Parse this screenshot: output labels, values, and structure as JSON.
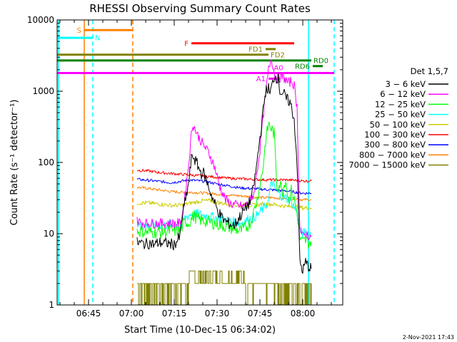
{
  "chart_data": {
    "type": "line",
    "title": "RHESSI Observing Summary Count Rates",
    "xlabel": "Start Time (10-Dec-15 06:34:02)",
    "ylabel": "Count Rate (s⁻¹ detector⁻¹)",
    "x_unit": "minutes UT",
    "xlim": [
      394,
      494
    ],
    "ylim": [
      1,
      10000
    ],
    "yscale": "log",
    "x_ticks": [
      {
        "value": 405,
        "label": "06:45"
      },
      {
        "value": 420,
        "label": "07:00"
      },
      {
        "value": 435,
        "label": "07:15"
      },
      {
        "value": 450,
        "label": "07:30"
      },
      {
        "value": 465,
        "label": "07:45"
      },
      {
        "value": 480,
        "label": "08:00"
      }
    ],
    "y_ticks": [
      {
        "value": 1,
        "label": "1"
      },
      {
        "value": 10,
        "label": "10"
      },
      {
        "value": 100,
        "label": "100"
      },
      {
        "value": 1000,
        "label": "1000"
      },
      {
        "value": 10000,
        "label": "10000"
      }
    ],
    "legend": {
      "title": "Det 1,5,7",
      "placement": "right",
      "entries": [
        {
          "label": "3 − 6 keV",
          "color": "#000000"
        },
        {
          "label": "6 − 12 keV",
          "color": "#ff00ff"
        },
        {
          "label": "12 − 25 keV",
          "color": "#00ff00"
        },
        {
          "label": "25 − 50 keV",
          "color": "#00ffff"
        },
        {
          "label": "50 − 100 keV",
          "color": "#cccc00"
        },
        {
          "label": "100 − 300 keV",
          "color": "#ff0000"
        },
        {
          "label": "300 − 800 keV",
          "color": "#0000ff"
        },
        {
          "label": "800 − 7000 keV",
          "color": "#ff8000"
        },
        {
          "label": "7000 − 15000 keV",
          "color": "#808000"
        }
      ]
    },
    "series": [
      {
        "name": "3 − 6 keV",
        "color": "#000000",
        "x": [
          422,
          425,
          427,
          428,
          429,
          430,
          433,
          435,
          437,
          438,
          439,
          440,
          441,
          441.5,
          443,
          444.5,
          445,
          446,
          448,
          450,
          452,
          454,
          456,
          459,
          462,
          463.5,
          465,
          466.5,
          467,
          468,
          468.5,
          469,
          470,
          471.5,
          472,
          473.5,
          474,
          475.5,
          476,
          477,
          478,
          479,
          480,
          481,
          482,
          483
        ],
        "y": [
          7.5,
          7.2,
          7.4,
          7,
          7.3,
          7.5,
          7.3,
          7,
          9,
          20,
          30,
          50,
          110,
          125,
          95,
          70,
          75,
          60,
          35,
          22,
          16,
          14,
          13,
          20,
          30,
          70,
          220,
          700,
          1000,
          1100,
          900,
          1100,
          1600,
          1500,
          1000,
          900,
          800,
          700,
          600,
          400,
          100,
          4,
          3,
          4,
          3.5,
          3.2
        ]
      },
      {
        "name": "6 − 12 keV",
        "color": "#ff00ff",
        "x": [
          422,
          425,
          428,
          431,
          434,
          437,
          438,
          439,
          440,
          441,
          441.5,
          443,
          445,
          447,
          449,
          451,
          453,
          455,
          457,
          459,
          461,
          463,
          465,
          466,
          467,
          468,
          469,
          470,
          471,
          473,
          475,
          476,
          477,
          478,
          479,
          480,
          481,
          482,
          483
        ],
        "y": [
          15,
          14,
          14,
          14,
          14,
          14,
          20,
          40,
          90,
          250,
          350,
          250,
          180,
          140,
          90,
          45,
          30,
          26,
          25,
          24,
          26,
          38,
          150,
          400,
          900,
          2000,
          3000,
          1800,
          1500,
          1600,
          1300,
          1400,
          1200,
          600,
          12,
          9,
          10,
          9.5,
          9
        ]
      },
      {
        "name": "12 − 25 keV",
        "color": "#00ff00",
        "x": [
          422,
          426,
          430,
          434,
          437,
          438,
          439,
          440,
          441,
          442,
          443,
          446,
          449,
          452,
          455,
          458,
          460,
          462,
          464,
          466,
          467,
          468,
          469,
          470,
          471,
          472,
          473,
          474,
          475,
          476,
          477,
          478,
          479,
          480,
          481,
          482,
          483
        ],
        "y": [
          11,
          10.5,
          10.5,
          11,
          11,
          13,
          15,
          14,
          16,
          18,
          16,
          15,
          14,
          13,
          12,
          11,
          12,
          15,
          30,
          80,
          200,
          350,
          300,
          250,
          45,
          50,
          40,
          60,
          30,
          40,
          30,
          20,
          8.5,
          7.5,
          8,
          7.5,
          7.8
        ]
      },
      {
        "name": "25 − 50 keV",
        "color": "#00ffff",
        "x": [
          422,
          426,
          430,
          434,
          437,
          438,
          439,
          441,
          443,
          446,
          449,
          452,
          455,
          458,
          461,
          464,
          466,
          468,
          469,
          470,
          472,
          474,
          476,
          478,
          479,
          480,
          481,
          482,
          483
        ],
        "y": [
          13.5,
          13,
          13,
          13.5,
          13,
          15,
          17,
          19,
          19,
          18,
          17,
          16,
          15,
          14,
          16,
          18,
          22,
          28,
          55,
          45,
          35,
          32,
          28,
          20,
          11,
          10,
          10.5,
          10,
          10.5
        ]
      },
      {
        "name": "50 − 100 keV",
        "color": "#cccc00",
        "x": [
          422,
          426,
          430,
          434,
          437,
          439,
          441,
          443,
          445,
          448,
          451,
          454,
          457,
          460,
          463,
          466,
          469,
          472,
          475,
          478,
          480,
          483
        ],
        "y": [
          27,
          27,
          26,
          25,
          25,
          26,
          27,
          28,
          29,
          29,
          27,
          26,
          25,
          25,
          25,
          26,
          26,
          25,
          24,
          24,
          23,
          23
        ]
      },
      {
        "name": "100 − 300 keV",
        "color": "#ff0000",
        "x": [
          422,
          426,
          430,
          434,
          438,
          442,
          446,
          450,
          454,
          458,
          462,
          466,
          470,
          474,
          478,
          480,
          483
        ],
        "y": [
          78,
          76,
          72,
          70,
          68,
          66,
          64,
          62,
          60,
          59,
          58,
          57,
          57,
          57,
          56,
          55,
          55
        ]
      },
      {
        "name": "300 − 800 keV",
        "color": "#0000ff",
        "x": [
          422,
          426,
          430,
          434,
          438,
          440,
          442,
          446,
          450,
          454,
          458,
          462,
          466,
          470,
          474,
          478,
          480,
          483
        ],
        "y": [
          58,
          56,
          54,
          52,
          55,
          57,
          56,
          54,
          50,
          47,
          44,
          43,
          42,
          41,
          40,
          38,
          37,
          37
        ]
      },
      {
        "name": "800 − 7000 keV",
        "color": "#ff8000",
        "x": [
          422,
          426,
          430,
          434,
          438,
          442,
          446,
          450,
          454,
          458,
          462,
          466,
          470,
          474,
          478,
          480,
          483
        ],
        "y": [
          45,
          43,
          41,
          39,
          38,
          38,
          37,
          36,
          35,
          34,
          33,
          32,
          32,
          31,
          31,
          30,
          30
        ]
      },
      {
        "name": "7000 − 15000 keV",
        "color": "#808000",
        "x": [
          422,
          425,
          428,
          431,
          434,
          438,
          440,
          442,
          444,
          446,
          448,
          450,
          452,
          454,
          456,
          458,
          460,
          462,
          466,
          468,
          470,
          474,
          478,
          483
        ],
        "y": [
          2,
          2,
          2,
          2,
          2,
          2,
          3,
          3,
          3,
          3,
          3,
          3,
          3,
          3,
          3,
          3,
          2,
          2,
          2,
          2,
          2,
          2,
          2,
          2
        ]
      }
    ],
    "vertical_lines": [
      {
        "x": 394.5,
        "color": "#00ffff",
        "style": "solid"
      },
      {
        "x": 403.5,
        "color": "#ff8000",
        "style": "solid"
      },
      {
        "x": 406.5,
        "color": "#00ffff",
        "style": "dashed"
      },
      {
        "x": 420.5,
        "color": "#ff8000",
        "style": "dashed"
      },
      {
        "x": 482,
        "color": "#00ffff",
        "style": "solid"
      },
      {
        "x": 491,
        "color": "#00ffff",
        "style": "dashed"
      }
    ],
    "flag_bars": [
      {
        "label": "S",
        "color": "#ff8000",
        "x1": 403.5,
        "x2": 420.5,
        "y": 7200,
        "label_side": "left"
      },
      {
        "label": "N",
        "color": "#00ffff",
        "x1": 394,
        "x2": 406.5,
        "y": 5600,
        "label_side": "right"
      },
      {
        "label": "F",
        "color": "#ff0000",
        "x1": 441,
        "x2": 477,
        "y": 4700,
        "label_side": "left"
      },
      {
        "label": "FD1",
        "color": "#808000",
        "x1": 467,
        "x2": 470.5,
        "y": 3900,
        "label_side": "left"
      },
      {
        "label": "FD2",
        "color": "#808000",
        "x1": 394,
        "x2": 468,
        "y": 3250,
        "label_side": "right"
      },
      {
        "label": "RD0",
        "color": "#008000",
        "x1": 394,
        "x2": 483,
        "y": 2700,
        "label_side": "right"
      },
      {
        "label": "RD6",
        "color": "#008000",
        "x1": 483.5,
        "x2": 487,
        "y": 2250,
        "label_side": "left"
      },
      {
        "label": "A1",
        "color": "#ff00ff",
        "x1": 468,
        "x2": 472,
        "y": 1500,
        "label_side": "left"
      },
      {
        "label": "A0",
        "color": "#ff00ff",
        "x1": 394,
        "x2": 491,
        "y": 1800,
        "label_side": "above"
      }
    ]
  },
  "footer_timestamp": "2-Nov-2021 17:43"
}
